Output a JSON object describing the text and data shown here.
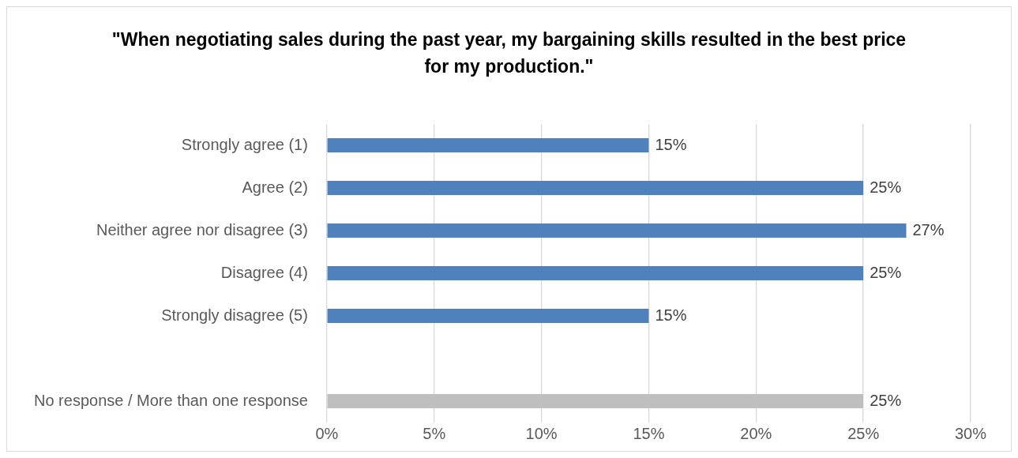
{
  "chart_data": {
    "type": "bar",
    "orientation": "horizontal",
    "title": "\"When negotiating sales during the past year, my bargaining skills resulted in the best price for my production.\"",
    "categories": [
      "Strongly agree (1)",
      "Agree (2)",
      "Neither agree nor disagree (3)",
      "Disagree (4)",
      "Strongly disagree (5)",
      null,
      "No response / More than one response"
    ],
    "values": [
      15,
      25,
      27,
      25,
      15,
      null,
      25
    ],
    "value_labels": [
      "15%",
      "25%",
      "27%",
      "25%",
      "15%",
      null,
      "25%"
    ],
    "colors": [
      "#4f81bd",
      "#4f81bd",
      "#4f81bd",
      "#4f81bd",
      "#4f81bd",
      "#4f81bd",
      "#bfbfbf"
    ],
    "xlim": [
      0,
      30
    ],
    "xticks": [
      {
        "value": 0,
        "label": "0%"
      },
      {
        "value": 5,
        "label": "5%"
      },
      {
        "value": 10,
        "label": "10%"
      },
      {
        "value": 15,
        "label": "15%"
      },
      {
        "value": 20,
        "label": "20%"
      },
      {
        "value": 25,
        "label": "25%"
      },
      {
        "value": 30,
        "label": "30%"
      }
    ],
    "grid": "x",
    "legend": false
  }
}
